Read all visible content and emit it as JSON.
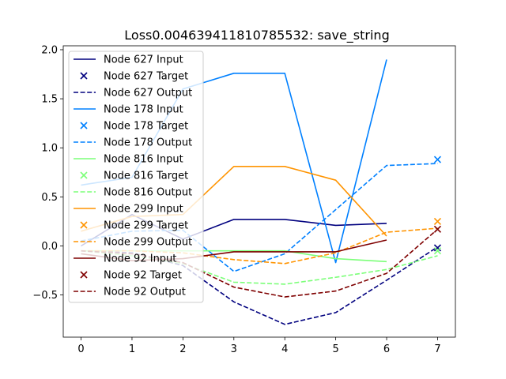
{
  "chart_data": {
    "type": "line",
    "title": "Loss0.004639411810785532: save_string",
    "xlabel": "",
    "ylabel": "",
    "xlim": [
      -0.35,
      7.35
    ],
    "ylim": [
      -0.93,
      2.04
    ],
    "xticks": [
      0,
      1,
      2,
      3,
      4,
      5,
      6,
      7
    ],
    "yticks": [
      -0.5,
      0.0,
      0.5,
      1.0,
      1.5,
      2.0
    ],
    "xtick_labels": [
      "0",
      "1",
      "2",
      "3",
      "4",
      "5",
      "6",
      "7"
    ],
    "ytick_labels": [
      "−0.5",
      "0.0",
      "0.5",
      "1.0",
      "1.5",
      "2.0"
    ],
    "grid": false,
    "legend_position": "top-left",
    "series": [
      {
        "name": "Node 627 Input",
        "kind": "input",
        "color": "#00007f",
        "x": [
          0,
          1,
          2,
          3,
          4,
          5,
          6
        ],
        "values": [
          0.0,
          0.32,
          0.07,
          0.27,
          0.27,
          0.21,
          0.23
        ]
      },
      {
        "name": "Node 627 Target",
        "kind": "target",
        "color": "#00007f",
        "x": [
          7
        ],
        "values": [
          -0.02
        ]
      },
      {
        "name": "Node 627 Output",
        "kind": "output",
        "color": "#00007f",
        "x": [
          0,
          1,
          2,
          3,
          4,
          5,
          6,
          7
        ],
        "values": [
          -0.05,
          -0.07,
          -0.2,
          -0.57,
          -0.8,
          -0.68,
          -0.35,
          -0.01
        ]
      },
      {
        "name": "Node 178 Input",
        "kind": "input",
        "color": "#0080ff",
        "x": [
          0,
          1,
          2,
          3,
          4,
          5,
          6
        ],
        "values": [
          0.62,
          0.7,
          1.6,
          1.76,
          1.76,
          -0.17,
          1.9
        ]
      },
      {
        "name": "Node 178 Target",
        "kind": "target",
        "color": "#0080ff",
        "x": [
          7
        ],
        "values": [
          0.88
        ]
      },
      {
        "name": "Node 178 Output",
        "kind": "output",
        "color": "#0080ff",
        "x": [
          0,
          1,
          2,
          3,
          4,
          5,
          6,
          7
        ],
        "values": [
          0.05,
          0.15,
          0.16,
          -0.26,
          -0.08,
          0.37,
          0.82,
          0.84
        ]
      },
      {
        "name": "Node 816 Input",
        "kind": "input",
        "color": "#7cff79",
        "x": [
          0,
          1,
          2,
          3,
          4,
          5,
          6
        ],
        "values": [
          -0.05,
          -0.05,
          -0.05,
          -0.05,
          -0.05,
          -0.13,
          -0.16
        ]
      },
      {
        "name": "Node 816 Target",
        "kind": "target",
        "color": "#7cff79",
        "x": [
          7
        ],
        "values": [
          -0.05
        ]
      },
      {
        "name": "Node 816 Output",
        "kind": "output",
        "color": "#7cff79",
        "x": [
          0,
          1,
          2,
          3,
          4,
          5,
          6,
          7
        ],
        "values": [
          -0.05,
          -0.1,
          -0.18,
          -0.37,
          -0.39,
          -0.32,
          -0.24,
          -0.1
        ]
      },
      {
        "name": "Node 299 Input",
        "kind": "input",
        "color": "#ff9400",
        "x": [
          0,
          1,
          2,
          3,
          4,
          5,
          6
        ],
        "values": [
          0.15,
          0.3,
          0.32,
          0.81,
          0.81,
          0.67,
          0.1
        ]
      },
      {
        "name": "Node 299 Target",
        "kind": "target",
        "color": "#ff9400",
        "x": [
          7
        ],
        "values": [
          0.25
        ]
      },
      {
        "name": "Node 299 Output",
        "kind": "output",
        "color": "#ff9400",
        "x": [
          0,
          1,
          2,
          3,
          4,
          5,
          6,
          7
        ],
        "values": [
          -0.05,
          -0.05,
          -0.07,
          -0.14,
          -0.18,
          -0.07,
          0.14,
          0.18
        ]
      },
      {
        "name": "Node 92 Input",
        "kind": "input",
        "color": "#7f0000",
        "x": [
          0,
          1,
          2,
          3,
          4,
          5,
          6
        ],
        "values": [
          -0.08,
          -0.15,
          -0.13,
          -0.06,
          -0.06,
          -0.06,
          0.06
        ]
      },
      {
        "name": "Node 92 Target",
        "kind": "target",
        "color": "#7f0000",
        "x": [
          7
        ],
        "values": [
          0.17
        ]
      },
      {
        "name": "Node 92 Output",
        "kind": "output",
        "color": "#7f0000",
        "x": [
          0,
          1,
          2,
          3,
          4,
          5,
          6,
          7
        ],
        "values": [
          -0.05,
          -0.08,
          -0.17,
          -0.42,
          -0.52,
          -0.46,
          -0.28,
          0.17
        ]
      }
    ]
  }
}
